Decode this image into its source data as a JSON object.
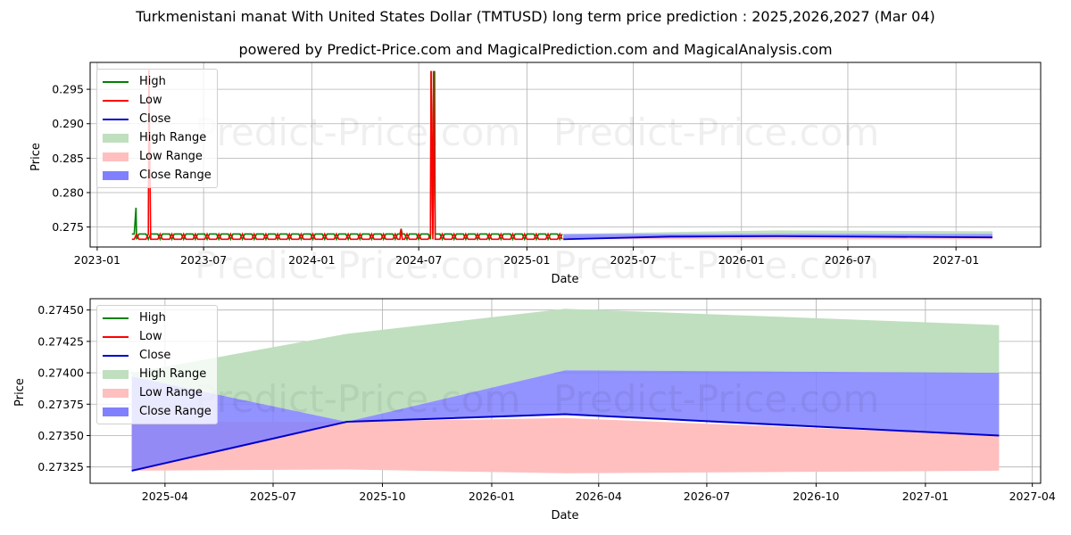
{
  "header": {
    "title": "Turkmenistani manat With United States Dollar (TMTUSD) long term price prediction : 2025,2026,2027 (Mar 04)",
    "subtitle": "powered by Predict-Price.com and MagicalPrediction.com and MagicalAnalysis.com"
  },
  "watermark": "Predict-Price.com",
  "legend": {
    "items": [
      {
        "label": "High",
        "kind": "line",
        "color": "#008000"
      },
      {
        "label": "Low",
        "kind": "line",
        "color": "#ff0000"
      },
      {
        "label": "Close",
        "kind": "line",
        "color": "#0000cc"
      },
      {
        "label": "High Range",
        "kind": "box",
        "color": "#bfdfbf"
      },
      {
        "label": "Low Range",
        "kind": "box",
        "color": "#ffbfbf"
      },
      {
        "label": "Close Range",
        "kind": "box",
        "color": "#8080ff"
      }
    ]
  },
  "chart_data": [
    {
      "type": "line",
      "title": "",
      "xlabel": "Date",
      "ylabel": "Price",
      "ylim": [
        0.2721,
        0.2989
      ],
      "xlim": [
        "2022-12-20",
        "2027-05-25"
      ],
      "grid": true,
      "legend_position": "upper left",
      "x_ticks": [
        "2023-01",
        "2023-07",
        "2024-01",
        "2024-07",
        "2025-01",
        "2025-07",
        "2026-01",
        "2026-07",
        "2027-01"
      ],
      "y_ticks": [
        "0.275",
        "0.280",
        "0.285",
        "0.290",
        "0.295"
      ],
      "series": [
        {
          "name": "High",
          "color": "#008000",
          "points": [
            [
              "2023-03-01",
              0.27399
            ],
            [
              "2023-03-08",
              0.2778
            ],
            [
              "2023-03-10",
              0.27399
            ],
            [
              "2023-07-01",
              0.27399
            ],
            [
              "2024-01-01",
              0.27399
            ],
            [
              "2024-05-20",
              0.27399
            ],
            [
              "2024-06-01",
              0.27475
            ],
            [
              "2024-06-05",
              0.27399
            ],
            [
              "2024-07-20",
              0.27399
            ],
            [
              "2024-07-22",
              0.29766
            ],
            [
              "2024-07-28",
              0.29766
            ],
            [
              "2024-07-30",
              0.27399
            ],
            [
              "2025-03-04",
              0.27399
            ]
          ]
        },
        {
          "name": "Low",
          "color": "#ff0000",
          "points": [
            [
              "2023-03-01",
              0.27322
            ],
            [
              "2023-03-28",
              0.27322
            ],
            [
              "2023-03-30",
              0.2978
            ],
            [
              "2023-04-01",
              0.27322
            ],
            [
              "2024-05-28",
              0.27322
            ],
            [
              "2024-06-01",
              0.27475
            ],
            [
              "2024-06-05",
              0.27322
            ],
            [
              "2024-07-20",
              0.27322
            ],
            [
              "2024-07-22",
              0.29766
            ],
            [
              "2024-07-26",
              0.29766
            ],
            [
              "2024-07-28",
              0.27322
            ],
            [
              "2025-03-04",
              0.27322
            ]
          ]
        },
        {
          "name": "Close",
          "color": "#0000cc",
          "points": [
            [
              "2025-03-04",
              0.27322
            ],
            [
              "2025-09-01",
              0.27361
            ],
            [
              "2026-03-04",
              0.27367
            ],
            [
              "2027-03-04",
              0.2735
            ]
          ]
        },
        {
          "name": "High Range",
          "color": "#bfdfbf",
          "band": [
            [
              "2025-03-04",
              0.27397,
              0.274
            ],
            [
              "2026-03-04",
              0.27402,
              0.27451
            ],
            [
              "2027-03-04",
              0.274,
              0.27438
            ]
          ]
        },
        {
          "name": "Low Range",
          "color": "#ffbfbf",
          "band": [
            [
              "2025-03-04",
              0.27322,
              0.27361
            ],
            [
              "2026-03-04",
              0.2732,
              0.27367
            ],
            [
              "2027-03-04",
              0.27322,
              0.2735
            ]
          ]
        },
        {
          "name": "Close Range",
          "color": "#8080ff",
          "band": [
            [
              "2025-03-04",
              0.27322,
              0.27397
            ],
            [
              "2026-03-04",
              0.27367,
              0.27402
            ],
            [
              "2027-03-04",
              0.2735,
              0.274
            ]
          ]
        }
      ]
    },
    {
      "type": "area",
      "title": "",
      "xlabel": "Date",
      "ylabel": "Price",
      "ylim": [
        0.27312,
        0.27459
      ],
      "xlim": [
        "2025-01-28",
        "2027-04-08"
      ],
      "grid": true,
      "legend_position": "upper left",
      "x_ticks": [
        "2025-04",
        "2025-07",
        "2025-10",
        "2026-01",
        "2026-04",
        "2026-07",
        "2026-10",
        "2027-01",
        "2027-04"
      ],
      "y_ticks": [
        "0.27325",
        "0.27350",
        "0.27375",
        "0.27400",
        "0.27425",
        "0.27450"
      ],
      "x": [
        "2025-03-04",
        "2025-09-01",
        "2026-03-04",
        "2027-03-04"
      ],
      "series": [
        {
          "name": "Close",
          "color": "#0000cc",
          "values": [
            0.27322,
            0.27361,
            0.27367,
            0.2735
          ]
        },
        {
          "name": "High Range",
          "color": "#bfdfbf",
          "lower": [
            0.27397,
            0.27361,
            0.27402,
            0.274
          ],
          "upper": [
            0.274,
            0.27431,
            0.27451,
            0.27438
          ]
        },
        {
          "name": "Low Range",
          "color": "#ffbfbf",
          "lower": [
            0.27322,
            0.27323,
            0.2732,
            0.27322
          ],
          "upper": [
            0.27361,
            0.27361,
            0.27364,
            0.2735
          ]
        },
        {
          "name": "Close Range",
          "color": "#8080ff",
          "lower": [
            0.27322,
            0.27361,
            0.27367,
            0.2735
          ],
          "upper": [
            0.27397,
            0.27361,
            0.27402,
            0.274
          ]
        }
      ]
    }
  ]
}
